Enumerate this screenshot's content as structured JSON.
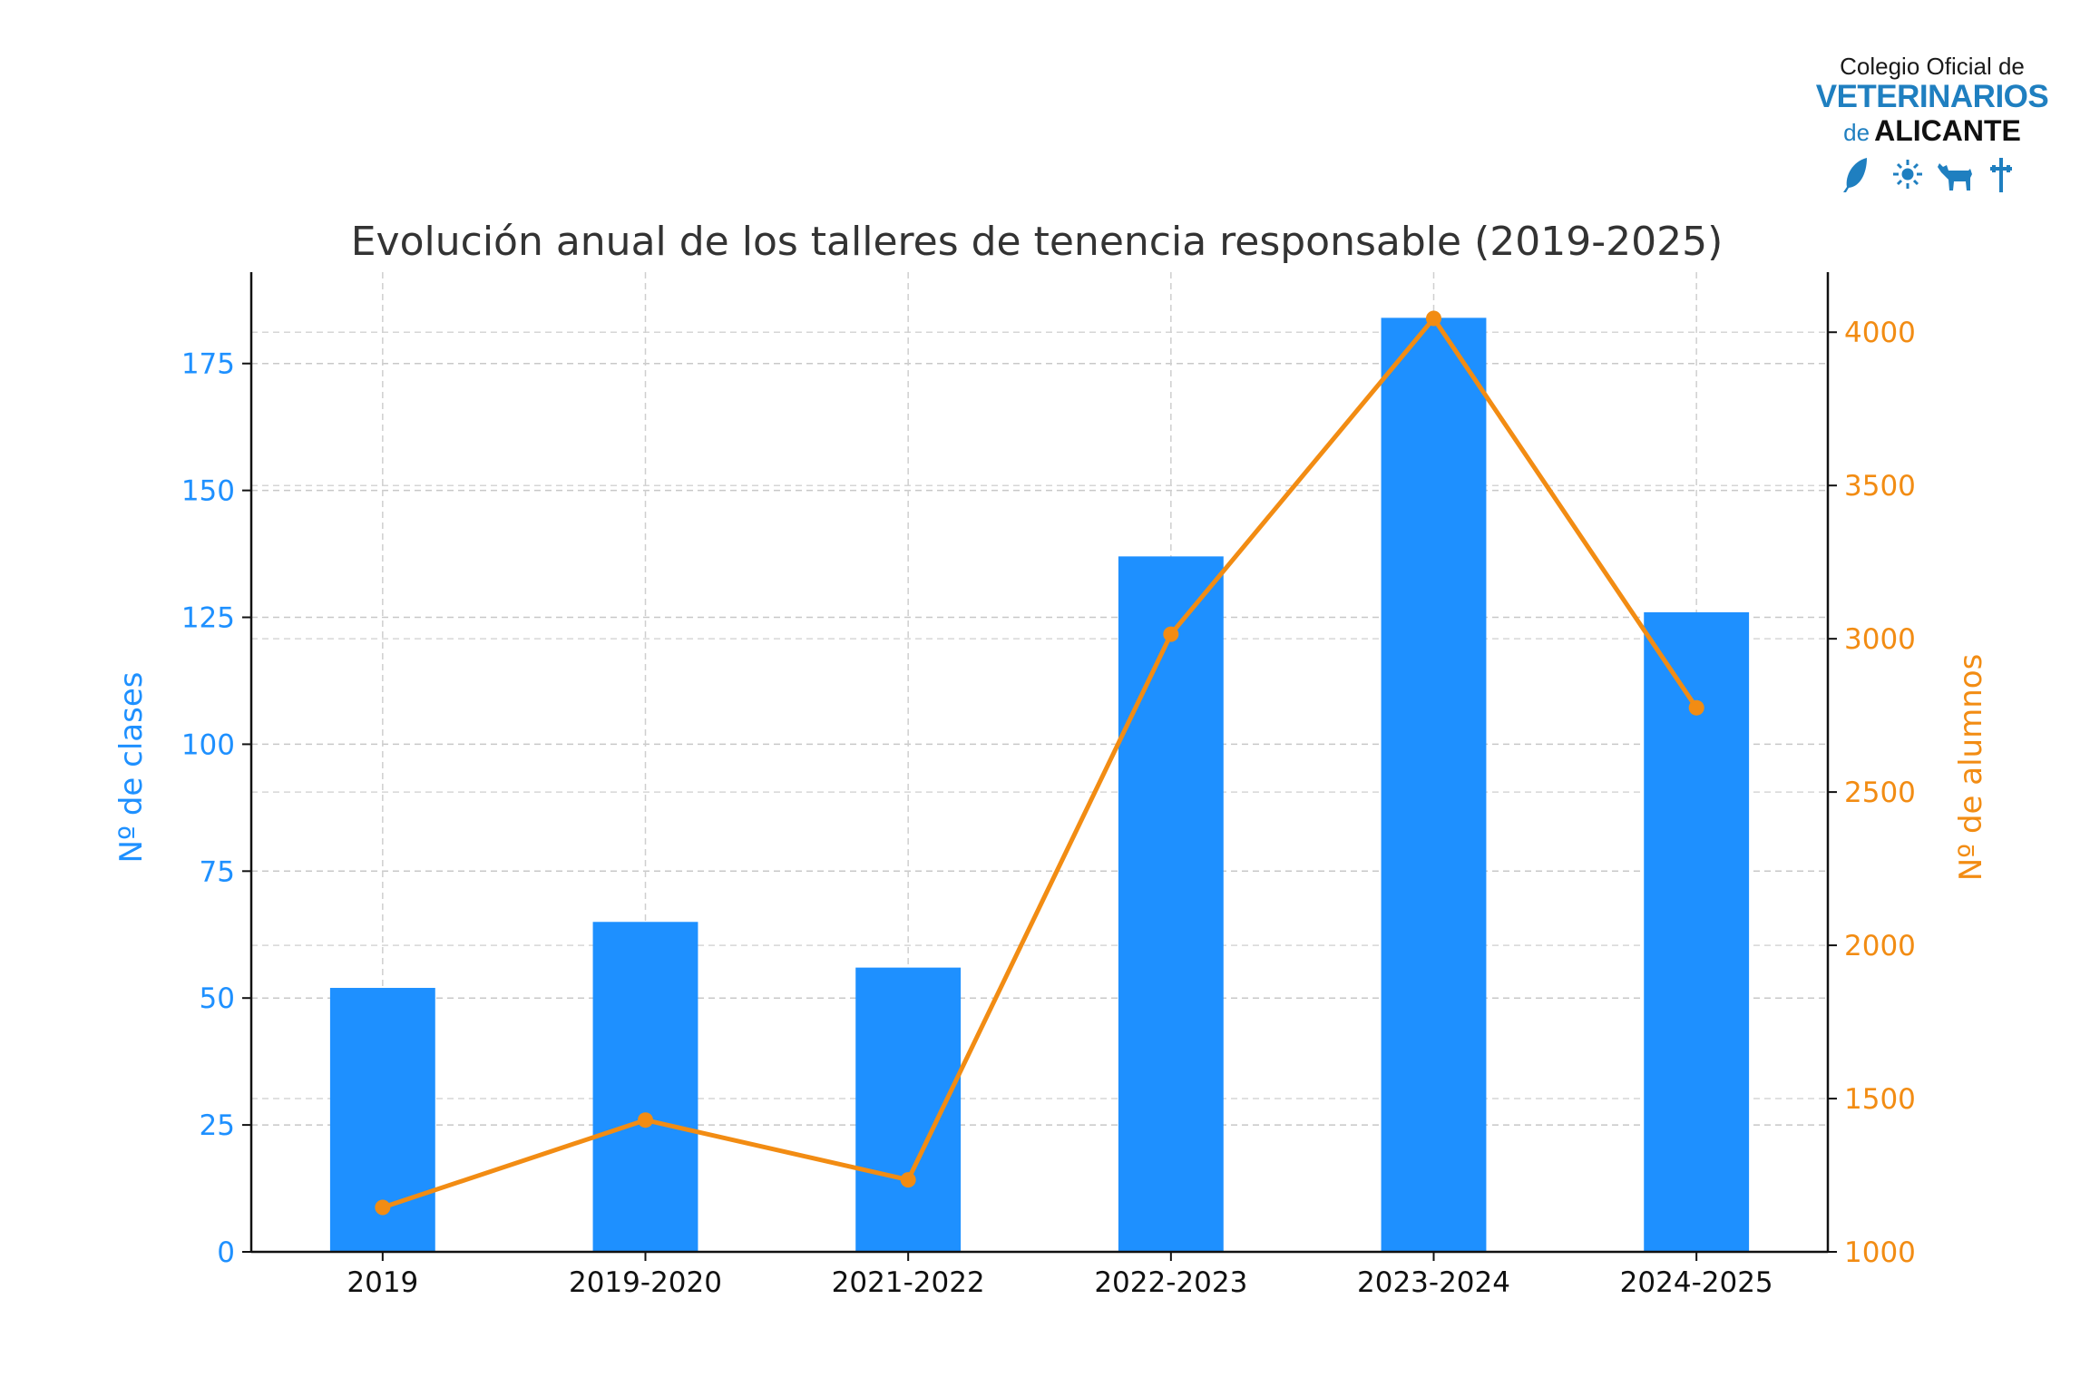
{
  "logo": {
    "line1": "Colegio Oficial de",
    "line2": "VETERINARIOS",
    "line3a": "de",
    "line3b": "ALICANTE",
    "icons": [
      "feather-icon",
      "sun-icon",
      "bull-icon",
      "cross-icon"
    ],
    "accent_color": "#1f7fc0"
  },
  "chart_data": {
    "type": "bar",
    "title": "Evolución anual de los talleres de tenencia responsable (2019-2025)",
    "categories": [
      "2019",
      "2019-2020",
      "2021-2022",
      "2022-2023",
      "2023-2024",
      "2024-2025"
    ],
    "series": [
      {
        "name": "",
        "type": "bar",
        "axis": "left",
        "color": "#1e90ff",
        "values": [
          52,
          65,
          56,
          137,
          184,
          126
        ]
      },
      {
        "name": "",
        "type": "line",
        "axis": "right",
        "color": "#f28c13",
        "values": [
          1145,
          1430,
          1235,
          3015,
          4045,
          2775
        ]
      }
    ],
    "ylabel_left": "Nº de clases",
    "ylabel_right": "Nº de alumnos",
    "ylim_left": [
      0,
      193
    ],
    "ylim_right": [
      1000,
      4196
    ],
    "yticks_left": [
      0,
      25,
      50,
      75,
      100,
      125,
      150,
      175
    ],
    "yticks_right": [
      1000,
      1500,
      2000,
      2500,
      3000,
      3500,
      4000
    ],
    "grid": true,
    "left_axis_color": "#1e90ff",
    "right_axis_color": "#f28c13"
  }
}
